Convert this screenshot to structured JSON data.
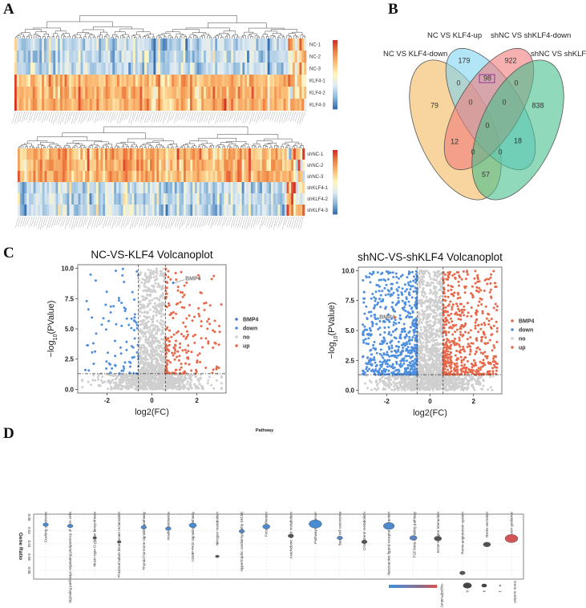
{
  "panels": {
    "a": "A",
    "b": "B",
    "c": "C",
    "d": "D"
  },
  "colors": {
    "heat_low": "#3a6fb0",
    "heat_mid": "#fdf6c0",
    "heat_high": "#d73027",
    "up": "#e8694a",
    "down": "#4f8fe0",
    "no": "#cfcfcf",
    "bmp4_top": "#4a79c7",
    "bmp4_bottom": "#e8694a"
  },
  "chart_data": [
    {
      "type": "heatmap",
      "rows": [
        "NC-1",
        "NC-2",
        "NC-3",
        "KLF4-1",
        "KLF4-2",
        "KLF4-3"
      ],
      "row_levels": [
        "low",
        "low",
        "low",
        "high",
        "high",
        "high"
      ],
      "dendrogram": true
    },
    {
      "type": "heatmap",
      "rows": [
        "shNC-1",
        "shNC-2",
        "shNC-3",
        "shKLF4-1",
        "shKLF4-2",
        "shKLF4-3"
      ],
      "row_levels": [
        "high",
        "high",
        "high",
        "low",
        "low",
        "low"
      ],
      "dendrogram": true
    },
    {
      "type": "venn",
      "sets": [
        "NC VS KLF4-down",
        "NC VS KLF4-up",
        "shNC VS shKLF4-down",
        "shNC VS shKLF4-up"
      ],
      "set_colors": [
        "#f5c77e",
        "#7fd3f0",
        "#f07b7b",
        "#46c08e"
      ],
      "regions": {
        "only_up": "179",
        "only_shdown": "922",
        "up_shdown": "98",
        "down_up": "0",
        "shdown_shup": "0",
        "only_down": "79",
        "down_up_shdown": "0",
        "up_shdown_shup": "0",
        "only_shup": "838",
        "all": "0",
        "down_shdown": "12",
        "up_shup": "18",
        "down_shdown_shup": "0",
        "down_up_shup": "0",
        "down_shup": "57"
      },
      "highlight": "98"
    },
    {
      "type": "scatter",
      "title": "NC-VS-KLF4 Volcanoplot",
      "xlabel": "log2(FC)",
      "ylabel": "-log10(PValue)",
      "xlim": [
        -3.3,
        3.3
      ],
      "ylim": [
        -0.3,
        10.3
      ],
      "xticks": [
        "-2",
        "0",
        "2"
      ],
      "yticks": [
        "0.0",
        "2.5",
        "5.0",
        "7.5",
        "10.0"
      ],
      "thresholds": {
        "fc": 0.6,
        "p": 1.3
      },
      "legend": [
        "BMP4",
        "down",
        "no",
        "up"
      ],
      "legend_placement": "right",
      "annotation": {
        "label": "BMP4",
        "x": 0.95,
        "y": 8.8
      }
    },
    {
      "type": "scatter",
      "title": "shNC-VS-shKLF4 Volcanoplot",
      "xlabel": "log2(FC)",
      "ylabel": "-log10(PValue)",
      "xlim": [
        -3.3,
        3.3
      ],
      "ylim": [
        -0.3,
        10.3
      ],
      "xticks": [
        "-2",
        "0",
        "2"
      ],
      "yticks": [
        "0.0",
        "2.5",
        "5.0",
        "7.5",
        "10.0"
      ],
      "thresholds": {
        "fc": 0.6,
        "p": 1.3
      },
      "legend": [
        "BMP4",
        "down",
        "no",
        "up"
      ],
      "legend_placement": "right",
      "annotation": {
        "label": "BMP4",
        "x": -1.6,
        "y": 6.1
      }
    },
    {
      "type": "scatter",
      "title": "Pathway",
      "ylabel": "Gene Ratio",
      "yticks": [
        "0.00",
        "0.02",
        "0.04",
        "0.06",
        "0.08"
      ],
      "ylim": [
        0.0,
        0.09
      ],
      "highlight": "TGF-beta signaling pathway",
      "color_legend": "-log10(Pvalue)",
      "size_legend": {
        "title": "Gene number",
        "values": [
          "6",
          "4",
          "1"
        ]
      },
      "points": [
        {
          "pathway": "Cushing syndrome",
          "ratio": 0.011,
          "genes": 2,
          "logp": 1.2
        },
        {
          "pathway": "Signaling pathways regulating pluripotency of stem cells",
          "ratio": 0.013,
          "genes": 2,
          "logp": 1.3
        },
        {
          "pathway": "Mucin type O-glycan biosynthesis",
          "ratio": 0.031,
          "genes": 1,
          "logp": 2.0
        },
        {
          "pathway": "Proximal tubule bicarbonate reclamation",
          "ratio": 0.037,
          "genes": 1,
          "logp": 2.0
        },
        {
          "pathway": "Thyroid hormone signaling pathway",
          "ratio": 0.015,
          "genes": 2,
          "logp": 1.3
        },
        {
          "pathway": "Insulin resistance",
          "ratio": 0.017,
          "genes": 2,
          "logp": 1.3
        },
        {
          "pathway": "cGMP-PKG signaling pathway",
          "ratio": 0.012,
          "genes": 3,
          "logp": 1.2
        },
        {
          "pathway": "Nitrogen metabolism",
          "ratio": 0.059,
          "genes": 1,
          "logp": 2.0
        },
        {
          "pathway": "Hypertrophic cardiomyopathy (HCM)",
          "ratio": 0.021,
          "genes": 2,
          "logp": 1.4
        },
        {
          "pathway": "Focal adhesion",
          "ratio": 0.014,
          "genes": 3,
          "logp": 1.3
        },
        {
          "pathway": "Arachidonic acid metabolism",
          "ratio": 0.028,
          "genes": 2,
          "logp": 2.0
        },
        {
          "pathway": "Pathways in cancer",
          "ratio": 0.01,
          "genes": 6,
          "logp": 1.2
        },
        {
          "pathway": "Basal cell carcinoma",
          "ratio": 0.031,
          "genes": 2,
          "logp": 1.5
        },
        {
          "pathway": "Cholesterol metabolism",
          "ratio": 0.037,
          "genes": 2,
          "logp": 2.0
        },
        {
          "pathway": "Neuroactive ligand-receptor interaction",
          "ratio": 0.013,
          "genes": 5,
          "logp": 1.3
        },
        {
          "pathway": "TGF-beta signaling pathway",
          "ratio": 0.031,
          "genes": 3,
          "logp": 1.6
        },
        {
          "pathway": "ECM-receptor interaction",
          "ratio": 0.032,
          "genes": 3,
          "logp": 2.0
        },
        {
          "pathway": "Renin-angiotensin system",
          "ratio": 0.084,
          "genes": 2,
          "logp": 2.1
        },
        {
          "pathway": "Renin secretion",
          "ratio": 0.041,
          "genes": 3,
          "logp": 2.1
        },
        {
          "pathway": "Axon guidance",
          "ratio": 0.032,
          "genes": 6,
          "logp": 3.3
        }
      ]
    }
  ]
}
